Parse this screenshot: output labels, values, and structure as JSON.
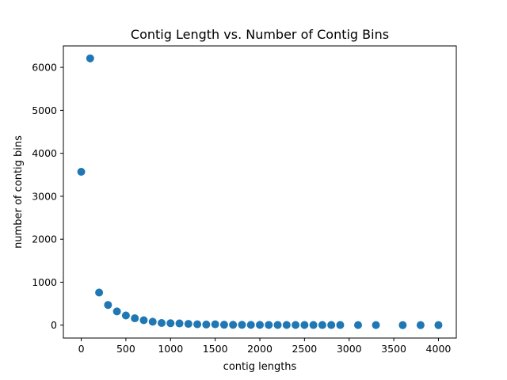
{
  "chart_data": {
    "type": "scatter",
    "title": "Contig Length vs. Number of Contig Bins",
    "xlabel": "contig lengths",
    "ylabel": "number of contig bins",
    "xlim": [
      -200,
      4200
    ],
    "ylim": [
      -300,
      6500
    ],
    "xticks": [
      0,
      500,
      1000,
      1500,
      2000,
      2500,
      3000,
      3500,
      4000
    ],
    "yticks": [
      0,
      1000,
      2000,
      3000,
      4000,
      5000,
      6000
    ],
    "grid": false,
    "marker_color": "#1f77b4",
    "points": [
      {
        "x": 0,
        "y": 3570
      },
      {
        "x": 100,
        "y": 6210
      },
      {
        "x": 200,
        "y": 760
      },
      {
        "x": 300,
        "y": 470
      },
      {
        "x": 400,
        "y": 320
      },
      {
        "x": 500,
        "y": 225
      },
      {
        "x": 600,
        "y": 160
      },
      {
        "x": 700,
        "y": 115
      },
      {
        "x": 800,
        "y": 80
      },
      {
        "x": 900,
        "y": 50
      },
      {
        "x": 1000,
        "y": 45
      },
      {
        "x": 1100,
        "y": 40
      },
      {
        "x": 1200,
        "y": 30
      },
      {
        "x": 1300,
        "y": 20
      },
      {
        "x": 1400,
        "y": 15
      },
      {
        "x": 1500,
        "y": 20
      },
      {
        "x": 1600,
        "y": 10
      },
      {
        "x": 1700,
        "y": 8
      },
      {
        "x": 1800,
        "y": 8
      },
      {
        "x": 1900,
        "y": 6
      },
      {
        "x": 2000,
        "y": 6
      },
      {
        "x": 2100,
        "y": 5
      },
      {
        "x": 2200,
        "y": 5
      },
      {
        "x": 2300,
        "y": 4
      },
      {
        "x": 2400,
        "y": 4
      },
      {
        "x": 2500,
        "y": 4
      },
      {
        "x": 2600,
        "y": 3
      },
      {
        "x": 2700,
        "y": 3
      },
      {
        "x": 2800,
        "y": 3
      },
      {
        "x": 2900,
        "y": 3
      },
      {
        "x": 3100,
        "y": 2
      },
      {
        "x": 3300,
        "y": 2
      },
      {
        "x": 3600,
        "y": 1
      },
      {
        "x": 3800,
        "y": 1
      },
      {
        "x": 4000,
        "y": 1
      }
    ]
  }
}
